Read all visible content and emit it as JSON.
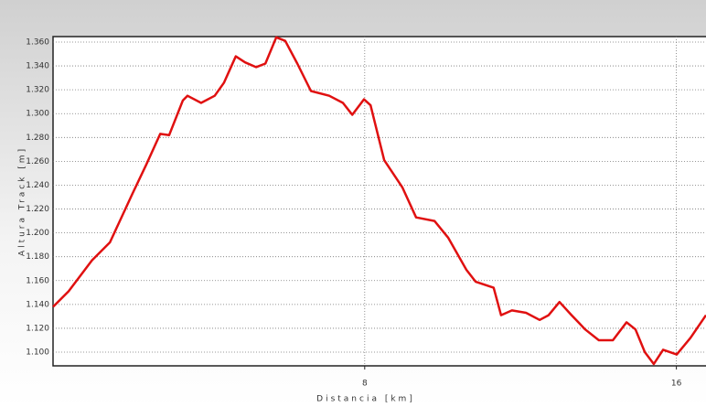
{
  "chart_data": {
    "type": "line",
    "xlabel": "Distancia [km]",
    "ylabel": "Altura Track [m]",
    "x": [
      0,
      0.4,
      1.0,
      1.46,
      2.04,
      2.39,
      2.75,
      2.98,
      3.33,
      3.45,
      3.8,
      4.15,
      4.39,
      4.69,
      4.93,
      5.21,
      5.45,
      5.73,
      5.96,
      6.27,
      6.62,
      7.09,
      7.44,
      7.68,
      7.98,
      8.15,
      8.5,
      8.97,
      9.32,
      9.79,
      10.14,
      10.61,
      10.85,
      11.31,
      11.5,
      11.78,
      12.14,
      12.49,
      12.72,
      13.0,
      13.31,
      13.66,
      14.01,
      14.37,
      14.72,
      14.95,
      15.19,
      15.42,
      15.66,
      16.01,
      16.36,
      16.76
    ],
    "values": [
      1138,
      1151,
      1177,
      1192,
      1233,
      1257,
      1283,
      1282,
      1311,
      1315,
      1309,
      1315,
      1326,
      1348,
      1343,
      1339,
      1342,
      1364,
      1361,
      1342,
      1319,
      1315,
      1309,
      1299,
      1312,
      1307,
      1261,
      1238,
      1213,
      1210,
      1196,
      1169,
      1159,
      1154,
      1131,
      1135,
      1133,
      1127,
      1131,
      1142,
      1131,
      1119,
      1110,
      1110,
      1125,
      1119,
      1100,
      1090,
      1102,
      1098,
      1112,
      1131
    ],
    "color": "#e01010",
    "xlim": [
      0,
      16.76
    ],
    "xticks": [
      8,
      16
    ],
    "ylim": [
      1088.5,
      1364.6
    ],
    "yticks": [
      {
        "value": 1100,
        "label": "1.100"
      },
      {
        "value": 1120,
        "label": "1.120"
      },
      {
        "value": 1140,
        "label": "1.140"
      },
      {
        "value": 1160,
        "label": "1.160"
      },
      {
        "value": 1180,
        "label": "1.180"
      },
      {
        "value": 1200,
        "label": "1.200"
      },
      {
        "value": 1220,
        "label": "1.220"
      },
      {
        "value": 1240,
        "label": "1.240"
      },
      {
        "value": 1260,
        "label": "1.260"
      },
      {
        "value": 1280,
        "label": "1.280"
      },
      {
        "value": 1300,
        "label": "1.300"
      },
      {
        "value": 1320,
        "label": "1.320"
      },
      {
        "value": 1340,
        "label": "1.340"
      },
      {
        "value": 1360,
        "label": "1.360"
      }
    ],
    "grid": true
  }
}
